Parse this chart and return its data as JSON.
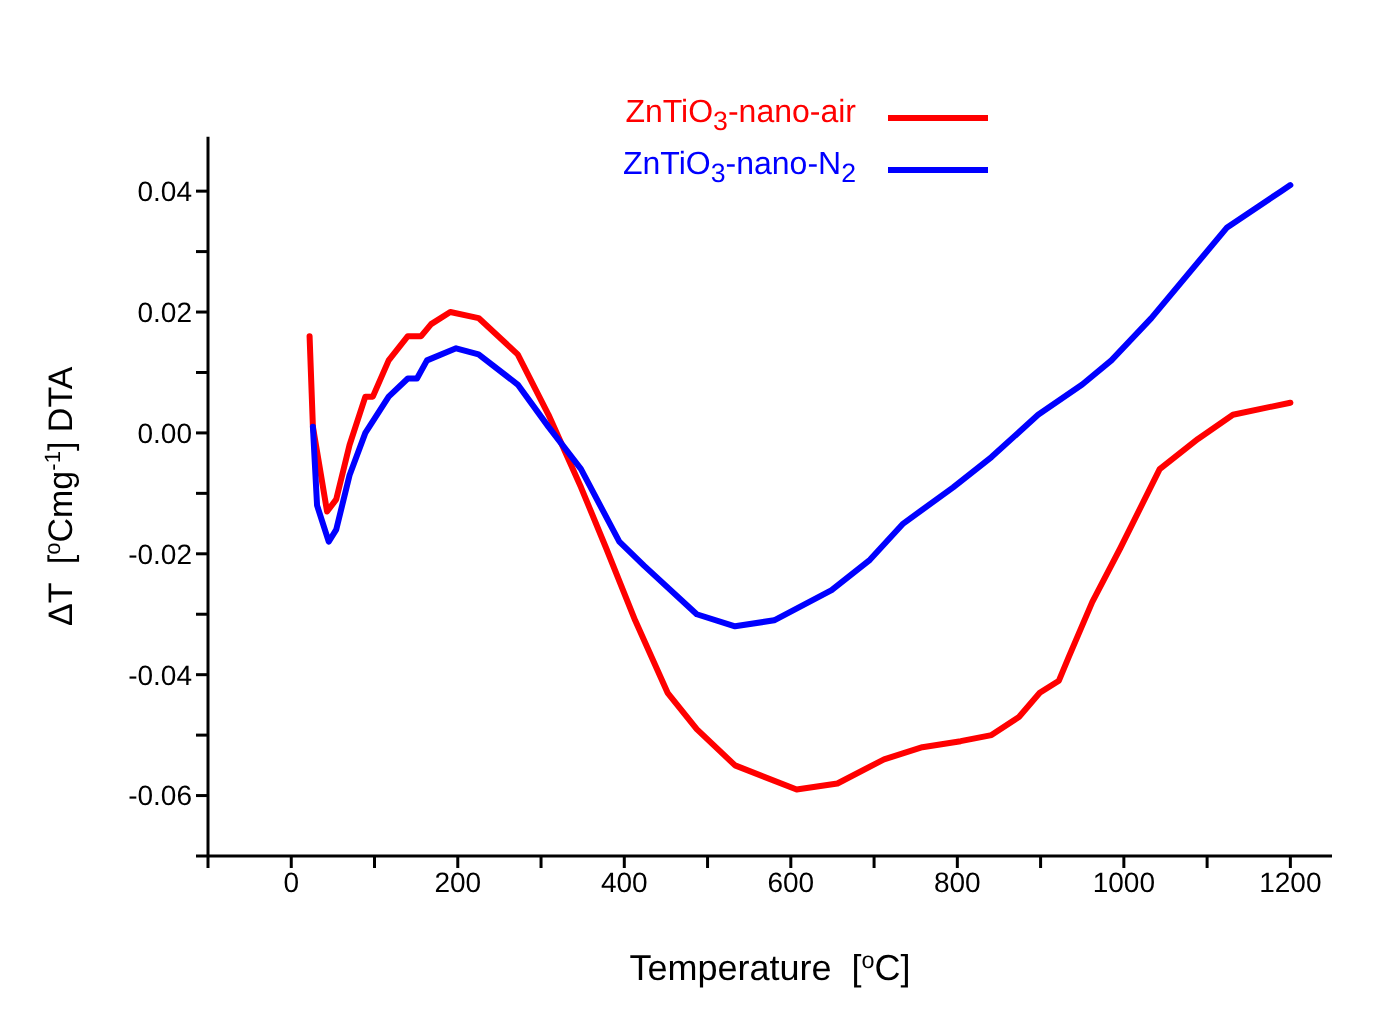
{
  "chart_data": {
    "type": "line",
    "xlabel": "Temperature  [$^{o}$C]",
    "ylabel": "ΔT  [$^{o}$Cmg$^{-1}$] DTA",
    "xlim": [
      -100,
      1250
    ],
    "xticks": [
      {
        "value": -100,
        "label": null
      },
      0,
      {
        "value": 100,
        "label": null
      },
      200,
      {
        "value": 300,
        "label": null
      },
      400,
      {
        "value": 500,
        "label": null
      },
      600,
      {
        "value": 700,
        "label": null
      },
      800,
      {
        "value": 900,
        "label": null
      },
      1000,
      {
        "value": 1100,
        "label": null
      },
      1200
    ],
    "ylim": [
      -0.07,
      0.049
    ],
    "yticks": [
      {
        "value": -0.07,
        "label": null
      },
      -0.06,
      {
        "value": -0.05,
        "label": null
      },
      -0.04,
      {
        "value": -0.03,
        "label": null
      },
      -0.02,
      {
        "value": -0.01,
        "label": null
      },
      "0.00",
      {
        "value": 0.01,
        "label": null
      },
      0.02,
      {
        "value": 0.03,
        "label": null
      },
      0.04
    ],
    "grid": false,
    "legend": "top",
    "line_style": "solid",
    "marker": "none",
    "series": [
      {
        "name": "ZnTiO$_{3}$-nano-air",
        "color": "#ff0000",
        "x": [
          22,
          26,
          43,
          54,
          70,
          89,
          98,
          117,
          140,
          156,
          168,
          191,
          225,
          272,
          309,
          348,
          378,
          413,
          452,
          487,
          533,
          607,
          656,
          712,
          758,
          804,
          841,
          874,
          899,
          922,
          934,
          962,
          996,
          1043,
          1089,
          1131,
          1200
        ],
        "values": [
          0.016,
          0.001,
          -0.013,
          -0.011,
          -0.002,
          0.006,
          0.006,
          0.012,
          0.016,
          0.016,
          0.018,
          0.02,
          0.019,
          0.013,
          0.003,
          -0.009,
          -0.019,
          -0.031,
          -0.043,
          -0.049,
          -0.055,
          -0.059,
          -0.058,
          -0.054,
          -0.052,
          -0.051,
          -0.05,
          -0.047,
          -0.043,
          -0.041,
          -0.037,
          -0.028,
          -0.019,
          -0.006,
          -0.001,
          0.003,
          0.005
        ]
      },
      {
        "name": "ZnTiO$_{3}$-nano-N$_{2}$",
        "color": "#0000ff",
        "x": [
          26,
          31,
          45,
          54,
          70,
          89,
          117,
          140,
          151,
          163,
          198,
          225,
          272,
          309,
          348,
          394,
          424,
          487,
          533,
          580,
          649,
          695,
          735,
          795,
          841,
          897,
          950,
          985,
          1033,
          1124,
          1189,
          1200
        ],
        "values": [
          0.001,
          -0.012,
          -0.018,
          -0.016,
          -0.007,
          0.0,
          0.006,
          0.009,
          0.009,
          0.012,
          0.014,
          0.013,
          0.008,
          0.001,
          -0.006,
          -0.018,
          -0.022,
          -0.03,
          -0.032,
          -0.031,
          -0.026,
          -0.021,
          -0.015,
          -0.009,
          -0.004,
          0.003,
          0.008,
          0.012,
          0.019,
          0.034,
          0.04,
          0.041
        ]
      }
    ]
  }
}
